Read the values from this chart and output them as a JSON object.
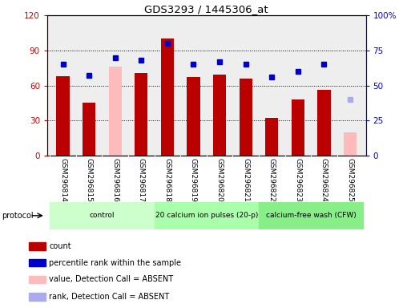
{
  "title": "GDS3293 / 1445306_at",
  "samples": [
    "GSM296814",
    "GSM296815",
    "GSM296816",
    "GSM296817",
    "GSM296818",
    "GSM296819",
    "GSM296820",
    "GSM296821",
    "GSM296822",
    "GSM296823",
    "GSM296824",
    "GSM296825"
  ],
  "bar_values": [
    68,
    45,
    null,
    71,
    100,
    67,
    69,
    66,
    32,
    48,
    56,
    null
  ],
  "bar_colors": [
    "#bb0000",
    "#bb0000",
    "#ffbbbb",
    "#bb0000",
    "#bb0000",
    "#bb0000",
    "#bb0000",
    "#bb0000",
    "#bb0000",
    "#bb0000",
    "#bb0000",
    "#ffbbbb"
  ],
  "percentile_values": [
    65,
    57,
    70,
    68,
    80,
    65,
    67,
    65,
    56,
    60,
    65,
    40
  ],
  "percentile_colors": [
    "#0000cc",
    "#0000cc",
    "#0000cc",
    "#0000cc",
    "#0000cc",
    "#0000cc",
    "#0000cc",
    "#0000cc",
    "#0000cc",
    "#0000cc",
    "#0000cc",
    "#aaaaee"
  ],
  "absent_bar_value": [
    null,
    null,
    76,
    null,
    null,
    null,
    null,
    null,
    null,
    null,
    null,
    20
  ],
  "ylim_left": [
    0,
    120
  ],
  "ylim_right": [
    0,
    100
  ],
  "yticks_left": [
    0,
    30,
    60,
    90,
    120
  ],
  "yticks_right": [
    0,
    25,
    50,
    75,
    100
  ],
  "ytick_labels_right": [
    "0",
    "25",
    "50",
    "75",
    "100%"
  ],
  "protocol_groups": [
    {
      "label": "control",
      "start": 0,
      "end": 3,
      "color": "#ccffcc"
    },
    {
      "label": "20 calcium ion pulses (20-p)",
      "start": 4,
      "end": 7,
      "color": "#aaffaa"
    },
    {
      "label": "calcium-free wash (CFW)",
      "start": 8,
      "end": 11,
      "color": "#88ee88"
    }
  ],
  "legend_items": [
    {
      "label": "count",
      "color": "#bb0000"
    },
    {
      "label": "percentile rank within the sample",
      "color": "#0000cc"
    },
    {
      "label": "value, Detection Call = ABSENT",
      "color": "#ffbbbb"
    },
    {
      "label": "rank, Detection Call = ABSENT",
      "color": "#aaaaee"
    }
  ],
  "bg_color": "#ffffff",
  "plot_bg_color": "#eeeeee",
  "left_axis_color": "#cc0000",
  "right_axis_color": "#0000cc",
  "sample_bg_color": "#cccccc",
  "bar_width": 0.5
}
